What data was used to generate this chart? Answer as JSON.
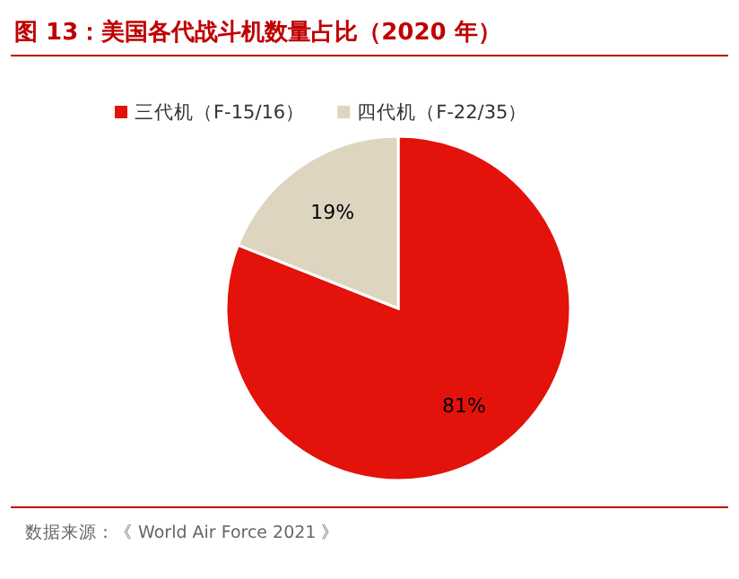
{
  "chart_data": {
    "type": "pie",
    "title": "图 13：美国各代战斗机数量占比（2020 年）",
    "categories": [
      "三代机（F-15/16）",
      "四代机（F-22/35）"
    ],
    "values": [
      81,
      19
    ],
    "value_labels": [
      "81%",
      "19%"
    ],
    "colors": [
      "#e3120b",
      "#ddd5c0"
    ],
    "legend": "top",
    "annotations": [
      "数据来源：《 World Air Force 2021 》"
    ]
  }
}
